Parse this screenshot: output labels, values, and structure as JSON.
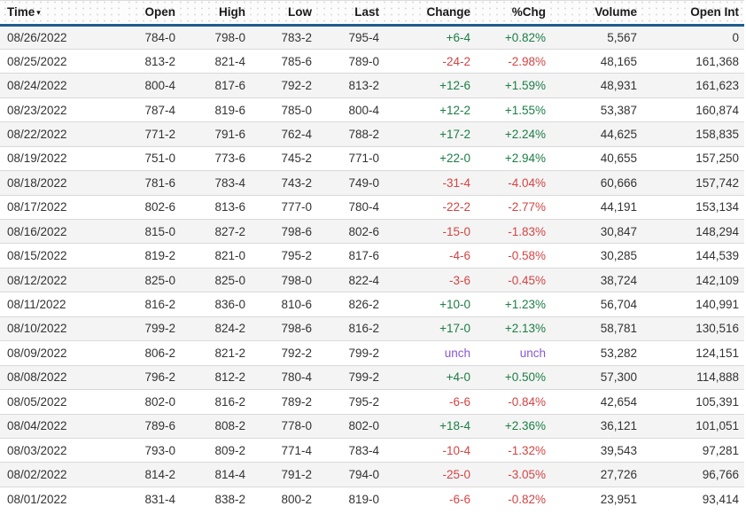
{
  "colors": {
    "up": "#1b7e45",
    "down": "#d24444",
    "unch": "#8a58d0",
    "accent": "#1e5c8e"
  },
  "header": {
    "sort_icon": "▾"
  },
  "table": {
    "columns": [
      {
        "key": "time",
        "label": "Time"
      },
      {
        "key": "open",
        "label": "Open"
      },
      {
        "key": "high",
        "label": "High"
      },
      {
        "key": "low",
        "label": "Low"
      },
      {
        "key": "last",
        "label": "Last"
      },
      {
        "key": "change",
        "label": "Change"
      },
      {
        "key": "pct_chg",
        "label": "%Chg"
      },
      {
        "key": "volume",
        "label": "Volume"
      },
      {
        "key": "open_int",
        "label": "Open Int"
      }
    ],
    "rows": [
      {
        "time": "08/26/2022",
        "open": "784-0",
        "high": "798-0",
        "low": "783-2",
        "last": "795-4",
        "change": "+6-4",
        "pct_chg": "+0.82%",
        "volume": "5,567",
        "open_int": "0",
        "direction": "up"
      },
      {
        "time": "08/25/2022",
        "open": "813-2",
        "high": "821-4",
        "low": "785-6",
        "last": "789-0",
        "change": "-24-2",
        "pct_chg": "-2.98%",
        "volume": "48,165",
        "open_int": "161,368",
        "direction": "down"
      },
      {
        "time": "08/24/2022",
        "open": "800-4",
        "high": "817-6",
        "low": "792-2",
        "last": "813-2",
        "change": "+12-6",
        "pct_chg": "+1.59%",
        "volume": "48,931",
        "open_int": "161,623",
        "direction": "up"
      },
      {
        "time": "08/23/2022",
        "open": "787-4",
        "high": "819-6",
        "low": "785-0",
        "last": "800-4",
        "change": "+12-2",
        "pct_chg": "+1.55%",
        "volume": "53,387",
        "open_int": "160,874",
        "direction": "up"
      },
      {
        "time": "08/22/2022",
        "open": "771-2",
        "high": "791-6",
        "low": "762-4",
        "last": "788-2",
        "change": "+17-2",
        "pct_chg": "+2.24%",
        "volume": "44,625",
        "open_int": "158,835",
        "direction": "up"
      },
      {
        "time": "08/19/2022",
        "open": "751-0",
        "high": "773-6",
        "low": "745-2",
        "last": "771-0",
        "change": "+22-0",
        "pct_chg": "+2.94%",
        "volume": "40,655",
        "open_int": "157,250",
        "direction": "up"
      },
      {
        "time": "08/18/2022",
        "open": "781-6",
        "high": "783-4",
        "low": "743-2",
        "last": "749-0",
        "change": "-31-4",
        "pct_chg": "-4.04%",
        "volume": "60,666",
        "open_int": "157,742",
        "direction": "down"
      },
      {
        "time": "08/17/2022",
        "open": "802-6",
        "high": "813-6",
        "low": "777-0",
        "last": "780-4",
        "change": "-22-2",
        "pct_chg": "-2.77%",
        "volume": "44,191",
        "open_int": "153,134",
        "direction": "down"
      },
      {
        "time": "08/16/2022",
        "open": "815-0",
        "high": "827-2",
        "low": "798-6",
        "last": "802-6",
        "change": "-15-0",
        "pct_chg": "-1.83%",
        "volume": "30,847",
        "open_int": "148,294",
        "direction": "down"
      },
      {
        "time": "08/15/2022",
        "open": "819-2",
        "high": "821-0",
        "low": "795-2",
        "last": "817-6",
        "change": "-4-6",
        "pct_chg": "-0.58%",
        "volume": "30,285",
        "open_int": "144,539",
        "direction": "down"
      },
      {
        "time": "08/12/2022",
        "open": "825-0",
        "high": "825-0",
        "low": "798-0",
        "last": "822-4",
        "change": "-3-6",
        "pct_chg": "-0.45%",
        "volume": "38,724",
        "open_int": "142,109",
        "direction": "down"
      },
      {
        "time": "08/11/2022",
        "open": "816-2",
        "high": "836-0",
        "low": "810-6",
        "last": "826-2",
        "change": "+10-0",
        "pct_chg": "+1.23%",
        "volume": "56,704",
        "open_int": "140,991",
        "direction": "up"
      },
      {
        "time": "08/10/2022",
        "open": "799-2",
        "high": "824-2",
        "low": "798-6",
        "last": "816-2",
        "change": "+17-0",
        "pct_chg": "+2.13%",
        "volume": "58,781",
        "open_int": "130,516",
        "direction": "up"
      },
      {
        "time": "08/09/2022",
        "open": "806-2",
        "high": "821-2",
        "low": "792-2",
        "last": "799-2",
        "change": "unch",
        "pct_chg": "unch",
        "volume": "53,282",
        "open_int": "124,151",
        "direction": "unch"
      },
      {
        "time": "08/08/2022",
        "open": "796-2",
        "high": "812-2",
        "low": "780-4",
        "last": "799-2",
        "change": "+4-0",
        "pct_chg": "+0.50%",
        "volume": "57,300",
        "open_int": "114,888",
        "direction": "up"
      },
      {
        "time": "08/05/2022",
        "open": "802-0",
        "high": "816-2",
        "low": "789-2",
        "last": "795-2",
        "change": "-6-6",
        "pct_chg": "-0.84%",
        "volume": "42,654",
        "open_int": "105,391",
        "direction": "down"
      },
      {
        "time": "08/04/2022",
        "open": "789-6",
        "high": "808-2",
        "low": "778-0",
        "last": "802-0",
        "change": "+18-4",
        "pct_chg": "+2.36%",
        "volume": "36,121",
        "open_int": "101,051",
        "direction": "up"
      },
      {
        "time": "08/03/2022",
        "open": "793-0",
        "high": "809-2",
        "low": "771-4",
        "last": "783-4",
        "change": "-10-4",
        "pct_chg": "-1.32%",
        "volume": "39,543",
        "open_int": "97,281",
        "direction": "down"
      },
      {
        "time": "08/02/2022",
        "open": "814-2",
        "high": "814-4",
        "low": "791-2",
        "last": "794-0",
        "change": "-25-0",
        "pct_chg": "-3.05%",
        "volume": "27,726",
        "open_int": "96,766",
        "direction": "down"
      },
      {
        "time": "08/01/2022",
        "open": "831-4",
        "high": "838-2",
        "low": "800-2",
        "last": "819-0",
        "change": "-6-6",
        "pct_chg": "-0.82%",
        "volume": "23,951",
        "open_int": "93,414",
        "direction": "down"
      }
    ]
  }
}
